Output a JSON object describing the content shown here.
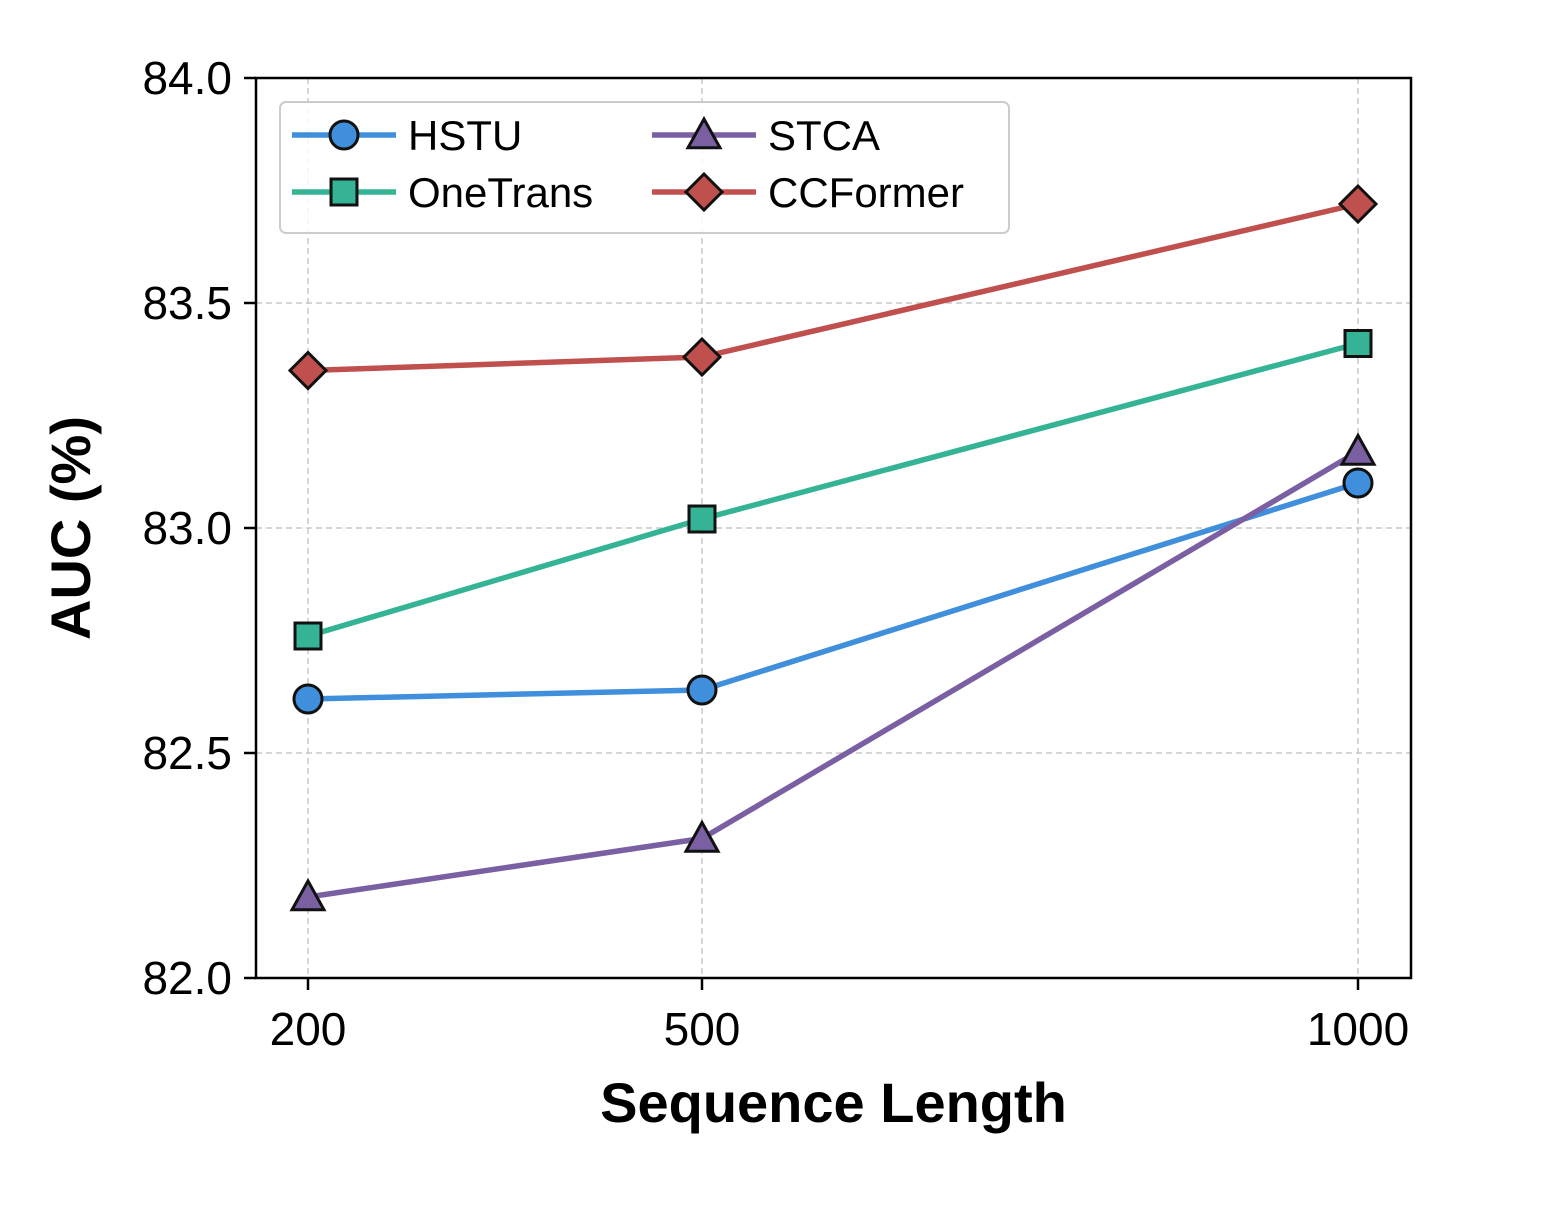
{
  "chart_data": {
    "type": "line",
    "title": "",
    "xlabel": "Sequence Length",
    "ylabel": "AUC (%)",
    "x": [
      200,
      500,
      1000
    ],
    "x_tick_labels": [
      "200",
      "500",
      "1000"
    ],
    "ylim": [
      82.0,
      84.0
    ],
    "y_tick_labels": [
      "82.0",
      "82.5",
      "83.0",
      "83.5",
      "84.0"
    ],
    "y_ticks": [
      82.0,
      82.5,
      83.0,
      83.5,
      84.0
    ],
    "grid": true,
    "legend_position": "top-left",
    "legend_columns": 2,
    "series": [
      {
        "name": "HSTU",
        "values": [
          82.62,
          82.64,
          83.1
        ],
        "color": "#3f8fdc",
        "marker": "circle"
      },
      {
        "name": "OneTrans",
        "values": [
          82.76,
          83.02,
          83.41
        ],
        "color": "#35b495",
        "marker": "square"
      },
      {
        "name": "STCA",
        "values": [
          82.18,
          82.31,
          83.17
        ],
        "color": "#7b5fa3",
        "marker": "triangle"
      },
      {
        "name": "CCFormer",
        "values": [
          83.35,
          83.38,
          83.72
        ],
        "color": "#c0504d",
        "marker": "diamond"
      }
    ]
  }
}
